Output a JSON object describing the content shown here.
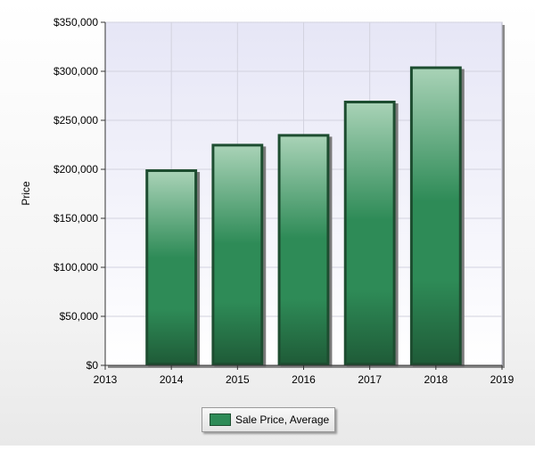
{
  "chart_data": {
    "type": "bar",
    "title": "",
    "xlabel": "",
    "ylabel": "Price",
    "x_ticks": [
      "2013",
      "2014",
      "2015",
      "2016",
      "2017",
      "2018",
      "2019"
    ],
    "xlim": [
      2013,
      2019
    ],
    "y_ticks": [
      "$0",
      "$50,000",
      "$100,000",
      "$150,000",
      "$200,000",
      "$250,000",
      "$300,000",
      "$350,000"
    ],
    "ylim": [
      0,
      350000
    ],
    "grid": true,
    "legend": {
      "placement": "bottom",
      "entries": [
        "Sale Price, Average"
      ]
    },
    "series": [
      {
        "name": "Sale Price, Average",
        "color": "#2e8b57",
        "x": [
          2014,
          2015,
          2016,
          2017,
          2018
        ],
        "values": [
          200000,
          226000,
          236000,
          270000,
          305000
        ]
      }
    ]
  }
}
